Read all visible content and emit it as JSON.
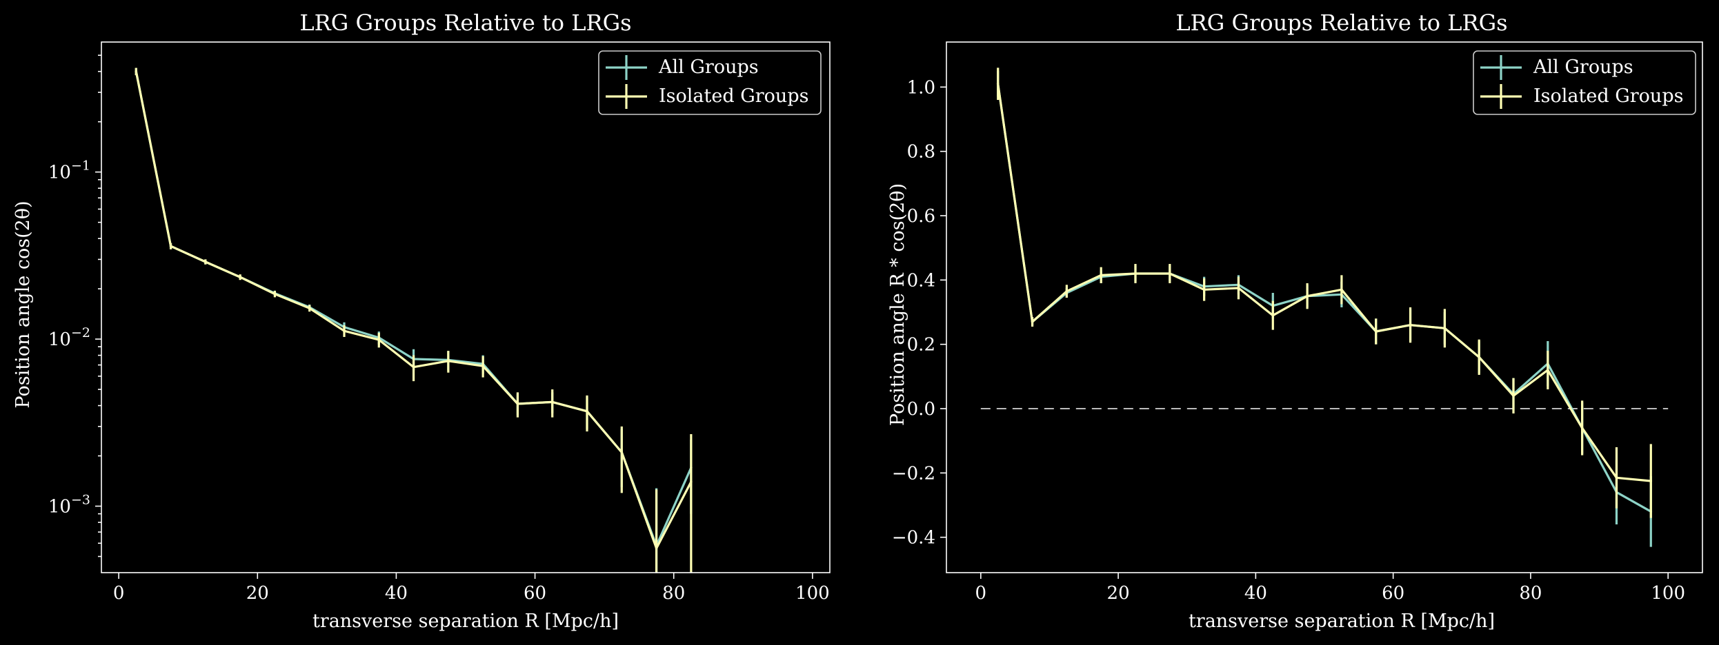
{
  "chart_data": [
    {
      "type": "line",
      "title": "LRG Groups Relative to LRGs",
      "xlabel": "transverse separation R [Mpc/h]",
      "ylabel": "Position angle cos(2θ)",
      "yscale": "log",
      "xlim": [
        -2.5,
        102.5
      ],
      "ylim": [
        0.0004,
        0.6
      ],
      "xticks": [
        0,
        20,
        40,
        60,
        80,
        100
      ],
      "xtick_labels": [
        "0",
        "20",
        "40",
        "60",
        "80",
        "100"
      ],
      "yticks": [
        0.001,
        0.01,
        0.1
      ],
      "ytick_labels": [
        "10−3",
        "10−2",
        "10−1"
      ],
      "legend_location": "top-right",
      "grid": false,
      "x": [
        2.5,
        7.5,
        12.5,
        17.5,
        22.5,
        27.5,
        32.5,
        37.5,
        42.5,
        47.5,
        52.5,
        57.5,
        62.5,
        67.5,
        72.5,
        77.5,
        82.5
      ],
      "series": [
        {
          "name": "All Groups",
          "color": "#8dd3c7",
          "values": [
            0.4,
            0.036,
            0.029,
            0.0235,
            0.0188,
            0.0155,
            0.0118,
            0.0102,
            0.0076,
            0.0075,
            0.0071,
            0.0041,
            0.0042,
            0.0037,
            0.0021,
            0.00058,
            0.0017
          ],
          "errors": [
            0.02,
            0.0015,
            0.001,
            0.0008,
            0.0007,
            0.0006,
            0.0008,
            0.0009,
            0.0011,
            0.001,
            0.0009,
            0.0006,
            0.0006,
            0.0008,
            0.0008,
            0.0007,
            0.0008
          ]
        },
        {
          "name": "Isolated Groups",
          "color": "#ffffb3",
          "values": [
            0.4,
            0.036,
            0.029,
            0.0235,
            0.0186,
            0.0153,
            0.0112,
            0.0099,
            0.0068,
            0.0074,
            0.0069,
            0.0041,
            0.0042,
            0.0037,
            0.0021,
            0.00056,
            0.0014
          ],
          "errors": [
            0.02,
            0.0015,
            0.001,
            0.0009,
            0.0008,
            0.0007,
            0.0009,
            0.001,
            0.0012,
            0.0011,
            0.001,
            0.0007,
            0.0008,
            0.0009,
            0.0009,
            0.0007,
            0.0013
          ]
        }
      ]
    },
    {
      "type": "line",
      "title": "LRG Groups Relative to LRGs",
      "xlabel": "transverse separation R [Mpc/h]",
      "ylabel": "Position angle R * cos(2θ)",
      "yscale": "linear",
      "xlim": [
        -5,
        105
      ],
      "ylim": [
        -0.51,
        1.14
      ],
      "xticks": [
        0,
        20,
        40,
        60,
        80,
        100
      ],
      "xtick_labels": [
        "0",
        "20",
        "40",
        "60",
        "80",
        "100"
      ],
      "yticks": [
        -0.4,
        -0.2,
        0.0,
        0.2,
        0.4,
        0.6,
        0.8,
        1.0
      ],
      "ytick_labels": [
        "−0.4",
        "−0.2",
        "0.0",
        "0.2",
        "0.4",
        "0.6",
        "0.8",
        "1.0"
      ],
      "legend_location": "top-right",
      "grid": false,
      "reference_line": {
        "y": 0.0,
        "x_from": 0,
        "x_to": 100,
        "style": "dashed",
        "color": "#bbbbbb"
      },
      "x": [
        2.5,
        7.5,
        12.5,
        17.5,
        22.5,
        27.5,
        32.5,
        37.5,
        42.5,
        47.5,
        52.5,
        57.5,
        62.5,
        67.5,
        72.5,
        77.5,
        82.5,
        87.5,
        92.5,
        97.5
      ],
      "series": [
        {
          "name": "All Groups",
          "color": "#8dd3c7",
          "values": [
            1.01,
            0.27,
            0.36,
            0.41,
            0.42,
            0.42,
            0.38,
            0.385,
            0.32,
            0.35,
            0.355,
            0.24,
            0.26,
            0.25,
            0.16,
            0.045,
            0.14,
            -0.06,
            -0.26,
            -0.32
          ],
          "errors": [
            0.04,
            0.01,
            0.015,
            0.02,
            0.025,
            0.025,
            0.03,
            0.03,
            0.04,
            0.035,
            0.04,
            0.04,
            0.05,
            0.05,
            0.05,
            0.05,
            0.07,
            0.08,
            0.1,
            0.11
          ]
        },
        {
          "name": "Isolated Groups",
          "color": "#ffffb3",
          "values": [
            1.01,
            0.27,
            0.365,
            0.415,
            0.42,
            0.42,
            0.37,
            0.375,
            0.29,
            0.35,
            0.37,
            0.24,
            0.26,
            0.25,
            0.16,
            0.04,
            0.12,
            -0.06,
            -0.215,
            -0.225
          ],
          "errors": [
            0.05,
            0.015,
            0.02,
            0.025,
            0.03,
            0.03,
            0.035,
            0.035,
            0.045,
            0.04,
            0.045,
            0.04,
            0.055,
            0.06,
            0.055,
            0.055,
            0.06,
            0.085,
            0.095,
            0.115
          ]
        }
      ]
    }
  ]
}
